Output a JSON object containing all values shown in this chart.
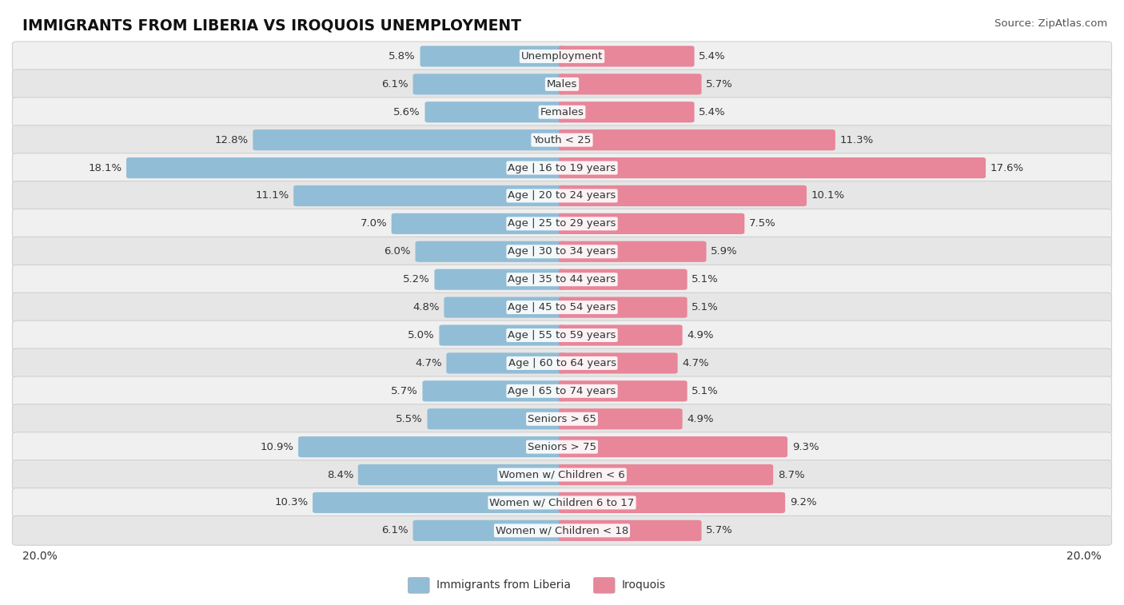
{
  "title": "IMMIGRANTS FROM LIBERIA VS IROQUOIS UNEMPLOYMENT",
  "source": "Source: ZipAtlas.com",
  "categories": [
    "Unemployment",
    "Males",
    "Females",
    "Youth < 25",
    "Age | 16 to 19 years",
    "Age | 20 to 24 years",
    "Age | 25 to 29 years",
    "Age | 30 to 34 years",
    "Age | 35 to 44 years",
    "Age | 45 to 54 years",
    "Age | 55 to 59 years",
    "Age | 60 to 64 years",
    "Age | 65 to 74 years",
    "Seniors > 65",
    "Seniors > 75",
    "Women w/ Children < 6",
    "Women w/ Children 6 to 17",
    "Women w/ Children < 18"
  ],
  "liberia": [
    5.8,
    6.1,
    5.6,
    12.8,
    18.1,
    11.1,
    7.0,
    6.0,
    5.2,
    4.8,
    5.0,
    4.7,
    5.7,
    5.5,
    10.9,
    8.4,
    10.3,
    6.1
  ],
  "iroquois": [
    5.4,
    5.7,
    5.4,
    11.3,
    17.6,
    10.1,
    7.5,
    5.9,
    5.1,
    5.1,
    4.9,
    4.7,
    5.1,
    4.9,
    9.3,
    8.7,
    9.2,
    5.7
  ],
  "liberia_color": "#92bdd6",
  "iroquois_color": "#e8869a",
  "max_val": 20.0,
  "title_fontsize": 13.5,
  "label_fontsize": 9.5,
  "value_fontsize": 9.5,
  "tick_fontsize": 10,
  "legend_fontsize": 10
}
